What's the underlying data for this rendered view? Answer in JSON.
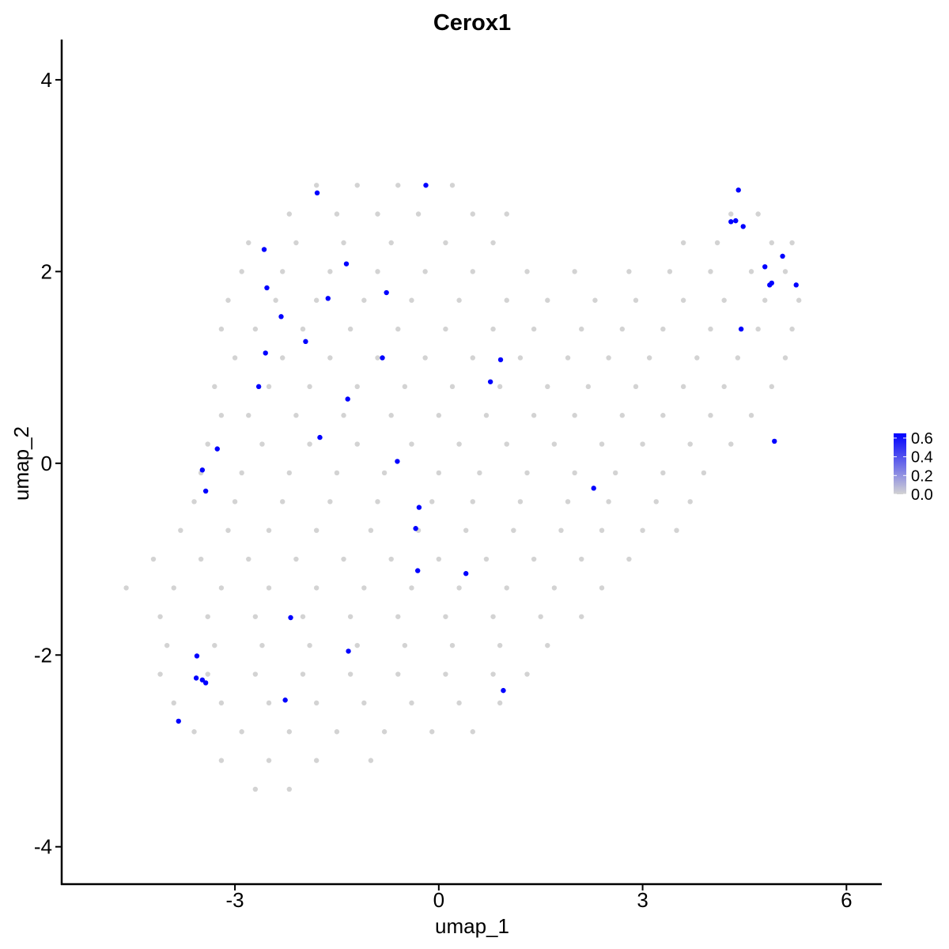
{
  "chart_data": {
    "type": "scatter",
    "title": "Cerox1",
    "x_label": "umap_1",
    "y_label": "umap_2",
    "xlim": [
      -5.55,
      6.52
    ],
    "ylim": [
      -4.39,
      4.42
    ],
    "xticks": [
      -3,
      0,
      3,
      6
    ],
    "yticks": [
      -4,
      -2,
      0,
      2,
      4
    ],
    "grid": false,
    "series": [
      {
        "color": "#d3d3d3",
        "points": [
          [
            -1.8,
            2.9
          ],
          [
            -1.2,
            2.9
          ],
          [
            -0.6,
            2.9
          ],
          [
            0.2,
            2.9
          ],
          [
            -2.2,
            2.6
          ],
          [
            -1.5,
            2.6
          ],
          [
            -0.9,
            2.6
          ],
          [
            -0.3,
            2.6
          ],
          [
            0.5,
            2.6
          ],
          [
            1.0,
            2.6
          ],
          [
            4.3,
            2.6
          ],
          [
            4.7,
            2.6
          ],
          [
            -2.8,
            2.3
          ],
          [
            -2.1,
            2.3
          ],
          [
            -1.4,
            2.3
          ],
          [
            -0.7,
            2.3
          ],
          [
            0.1,
            2.3
          ],
          [
            0.8,
            2.3
          ],
          [
            3.6,
            2.3
          ],
          [
            4.1,
            2.3
          ],
          [
            4.9,
            2.3
          ],
          [
            5.2,
            2.3
          ],
          [
            -2.9,
            2.0
          ],
          [
            -2.3,
            2.0
          ],
          [
            -1.6,
            2.0
          ],
          [
            -0.9,
            2.0
          ],
          [
            -0.2,
            2.0
          ],
          [
            0.5,
            2.0
          ],
          [
            1.3,
            2.0
          ],
          [
            2.0,
            2.0
          ],
          [
            2.8,
            2.0
          ],
          [
            3.4,
            2.0
          ],
          [
            4.0,
            2.0
          ],
          [
            4.6,
            2.0
          ],
          [
            5.1,
            2.0
          ],
          [
            -3.1,
            1.7
          ],
          [
            -2.4,
            1.7
          ],
          [
            -1.8,
            1.7
          ],
          [
            -1.1,
            1.7
          ],
          [
            -0.4,
            1.7
          ],
          [
            0.3,
            1.7
          ],
          [
            1.0,
            1.7
          ],
          [
            1.6,
            1.7
          ],
          [
            2.3,
            1.7
          ],
          [
            2.9,
            1.7
          ],
          [
            3.6,
            1.7
          ],
          [
            4.2,
            1.7
          ],
          [
            4.8,
            1.7
          ],
          [
            5.3,
            1.7
          ],
          [
            -3.2,
            1.4
          ],
          [
            -2.7,
            1.4
          ],
          [
            -2.0,
            1.4
          ],
          [
            -1.3,
            1.4
          ],
          [
            -0.6,
            1.4
          ],
          [
            0.1,
            1.4
          ],
          [
            0.8,
            1.4
          ],
          [
            1.4,
            1.4
          ],
          [
            2.1,
            1.4
          ],
          [
            2.7,
            1.4
          ],
          [
            3.3,
            1.4
          ],
          [
            4.0,
            1.4
          ],
          [
            4.7,
            1.4
          ],
          [
            5.2,
            1.4
          ],
          [
            -3.0,
            1.1
          ],
          [
            -2.3,
            1.1
          ],
          [
            -1.6,
            1.1
          ],
          [
            -0.9,
            1.1
          ],
          [
            -0.2,
            1.1
          ],
          [
            0.5,
            1.1
          ],
          [
            1.2,
            1.1
          ],
          [
            1.9,
            1.1
          ],
          [
            2.5,
            1.1
          ],
          [
            3.1,
            1.1
          ],
          [
            3.8,
            1.1
          ],
          [
            4.4,
            1.1
          ],
          [
            5.1,
            1.1
          ],
          [
            -3.3,
            0.8
          ],
          [
            -2.5,
            0.8
          ],
          [
            -1.9,
            0.8
          ],
          [
            -1.2,
            0.8
          ],
          [
            -0.5,
            0.8
          ],
          [
            0.2,
            0.8
          ],
          [
            0.9,
            0.8
          ],
          [
            1.6,
            0.8
          ],
          [
            2.2,
            0.8
          ],
          [
            2.9,
            0.8
          ],
          [
            3.6,
            0.8
          ],
          [
            4.2,
            0.8
          ],
          [
            4.9,
            0.8
          ],
          [
            -3.2,
            0.5
          ],
          [
            -2.8,
            0.5
          ],
          [
            -2.1,
            0.5
          ],
          [
            -1.4,
            0.5
          ],
          [
            -0.7,
            0.5
          ],
          [
            0.0,
            0.5
          ],
          [
            0.7,
            0.5
          ],
          [
            1.4,
            0.5
          ],
          [
            2.0,
            0.5
          ],
          [
            2.7,
            0.5
          ],
          [
            3.3,
            0.5
          ],
          [
            4.0,
            0.5
          ],
          [
            4.6,
            0.5
          ],
          [
            -3.4,
            0.2
          ],
          [
            -2.6,
            0.2
          ],
          [
            -1.9,
            0.2
          ],
          [
            -1.2,
            0.2
          ],
          [
            -0.4,
            0.2
          ],
          [
            0.3,
            0.2
          ],
          [
            1.0,
            0.2
          ],
          [
            1.7,
            0.2
          ],
          [
            2.4,
            0.2
          ],
          [
            3.0,
            0.2
          ],
          [
            3.7,
            0.2
          ],
          [
            4.3,
            0.2
          ],
          [
            -3.5,
            -0.1
          ],
          [
            -2.9,
            -0.1
          ],
          [
            -2.2,
            -0.1
          ],
          [
            -1.5,
            -0.1
          ],
          [
            -0.8,
            -0.1
          ],
          [
            0.0,
            -0.1
          ],
          [
            0.6,
            -0.1
          ],
          [
            1.3,
            -0.1
          ],
          [
            2.0,
            -0.1
          ],
          [
            2.6,
            -0.1
          ],
          [
            3.3,
            -0.1
          ],
          [
            3.9,
            -0.1
          ],
          [
            -3.6,
            -0.4
          ],
          [
            -3.0,
            -0.4
          ],
          [
            -2.3,
            -0.4
          ],
          [
            -1.6,
            -0.4
          ],
          [
            -0.9,
            -0.4
          ],
          [
            -0.1,
            -0.4
          ],
          [
            0.5,
            -0.4
          ],
          [
            1.2,
            -0.4
          ],
          [
            1.9,
            -0.4
          ],
          [
            2.5,
            -0.4
          ],
          [
            3.2,
            -0.4
          ],
          [
            3.7,
            -0.4
          ],
          [
            -3.8,
            -0.7
          ],
          [
            -3.1,
            -0.7
          ],
          [
            -2.5,
            -0.7
          ],
          [
            -1.8,
            -0.7
          ],
          [
            -1.0,
            -0.7
          ],
          [
            -0.3,
            -0.7
          ],
          [
            0.4,
            -0.7
          ],
          [
            1.1,
            -0.7
          ],
          [
            1.8,
            -0.7
          ],
          [
            2.4,
            -0.7
          ],
          [
            3.0,
            -0.7
          ],
          [
            3.5,
            -0.7
          ],
          [
            -4.2,
            -1.0
          ],
          [
            -3.5,
            -1.0
          ],
          [
            -2.8,
            -1.0
          ],
          [
            -2.1,
            -1.0
          ],
          [
            -1.4,
            -1.0
          ],
          [
            -0.7,
            -1.0
          ],
          [
            0.0,
            -1.0
          ],
          [
            0.7,
            -1.0
          ],
          [
            1.4,
            -1.0
          ],
          [
            2.1,
            -1.0
          ],
          [
            2.8,
            -1.0
          ],
          [
            -4.6,
            -1.3
          ],
          [
            -3.9,
            -1.3
          ],
          [
            -3.2,
            -1.3
          ],
          [
            -2.5,
            -1.3
          ],
          [
            -1.8,
            -1.3
          ],
          [
            -1.1,
            -1.3
          ],
          [
            -0.4,
            -1.3
          ],
          [
            0.3,
            -1.3
          ],
          [
            1.0,
            -1.3
          ],
          [
            1.7,
            -1.3
          ],
          [
            2.4,
            -1.3
          ],
          [
            -4.1,
            -1.6
          ],
          [
            -3.4,
            -1.6
          ],
          [
            -2.7,
            -1.6
          ],
          [
            -2.0,
            -1.6
          ],
          [
            -1.3,
            -1.6
          ],
          [
            -0.6,
            -1.6
          ],
          [
            0.1,
            -1.6
          ],
          [
            0.8,
            -1.6
          ],
          [
            1.5,
            -1.6
          ],
          [
            2.1,
            -1.6
          ],
          [
            -4.0,
            -1.9
          ],
          [
            -3.3,
            -1.9
          ],
          [
            -2.6,
            -1.9
          ],
          [
            -1.9,
            -1.9
          ],
          [
            -1.2,
            -1.9
          ],
          [
            -0.5,
            -1.9
          ],
          [
            0.2,
            -1.9
          ],
          [
            0.9,
            -1.9
          ],
          [
            1.6,
            -1.9
          ],
          [
            -4.1,
            -2.2
          ],
          [
            -3.4,
            -2.2
          ],
          [
            -2.7,
            -2.2
          ],
          [
            -2.0,
            -2.2
          ],
          [
            -1.3,
            -2.2
          ],
          [
            -0.6,
            -2.2
          ],
          [
            0.1,
            -2.2
          ],
          [
            0.8,
            -2.2
          ],
          [
            1.3,
            -2.2
          ],
          [
            -3.9,
            -2.5
          ],
          [
            -3.2,
            -2.5
          ],
          [
            -2.5,
            -2.5
          ],
          [
            -1.8,
            -2.5
          ],
          [
            -1.1,
            -2.5
          ],
          [
            -0.4,
            -2.5
          ],
          [
            0.3,
            -2.5
          ],
          [
            0.9,
            -2.5
          ],
          [
            -3.6,
            -2.8
          ],
          [
            -2.9,
            -2.8
          ],
          [
            -2.2,
            -2.8
          ],
          [
            -1.5,
            -2.8
          ],
          [
            -0.8,
            -2.8
          ],
          [
            -0.1,
            -2.8
          ],
          [
            0.5,
            -2.8
          ],
          [
            -3.2,
            -3.1
          ],
          [
            -2.5,
            -3.1
          ],
          [
            -1.8,
            -3.1
          ],
          [
            -1.0,
            -3.1
          ],
          [
            -2.7,
            -3.4
          ],
          [
            -2.2,
            -3.4
          ]
        ]
      },
      {
        "color": "#0000ff",
        "points": [
          [
            -1.79,
            2.82
          ],
          [
            -0.19,
            2.9
          ],
          [
            -2.57,
            2.23
          ],
          [
            -1.36,
            2.08
          ],
          [
            -2.53,
            1.83
          ],
          [
            -0.77,
            1.78
          ],
          [
            -1.63,
            1.72
          ],
          [
            -2.32,
            1.53
          ],
          [
            -1.96,
            1.27
          ],
          [
            -2.55,
            1.15
          ],
          [
            -0.83,
            1.1
          ],
          [
            0.91,
            1.08
          ],
          [
            0.76,
            0.85
          ],
          [
            -2.65,
            0.8
          ],
          [
            -1.34,
            0.67
          ],
          [
            -1.75,
            0.27
          ],
          [
            -3.26,
            0.15
          ],
          [
            -0.61,
            0.02
          ],
          [
            -3.48,
            -0.07
          ],
          [
            -3.43,
            -0.29
          ],
          [
            2.28,
            -0.26
          ],
          [
            -0.29,
            -0.46
          ],
          [
            -0.34,
            -0.68
          ],
          [
            -0.31,
            -1.12
          ],
          [
            0.4,
            -1.15
          ],
          [
            -2.18,
            -1.61
          ],
          [
            -1.33,
            -1.96
          ],
          [
            -3.56,
            -2.01
          ],
          [
            -3.57,
            -2.24
          ],
          [
            -3.48,
            -2.26
          ],
          [
            -3.43,
            -2.29
          ],
          [
            0.95,
            -2.37
          ],
          [
            -2.26,
            -2.47
          ],
          [
            -3.83,
            -2.69
          ],
          [
            4.41,
            2.85
          ],
          [
            4.3,
            2.52
          ],
          [
            4.37,
            2.53
          ],
          [
            4.48,
            2.47
          ],
          [
            5.06,
            2.16
          ],
          [
            4.8,
            2.05
          ],
          [
            4.9,
            1.88
          ],
          [
            4.87,
            1.86
          ],
          [
            5.26,
            1.86
          ],
          [
            4.45,
            1.4
          ],
          [
            4.94,
            0.23
          ]
        ]
      }
    ],
    "colorbar": {
      "lim": [
        0,
        0.65
      ],
      "low_color": "#d3d3d3",
      "high_color": "#0000ff",
      "ticks": [
        {
          "value": 0,
          "label": "0.0"
        },
        0.2,
        0.4,
        0.6
      ]
    }
  }
}
